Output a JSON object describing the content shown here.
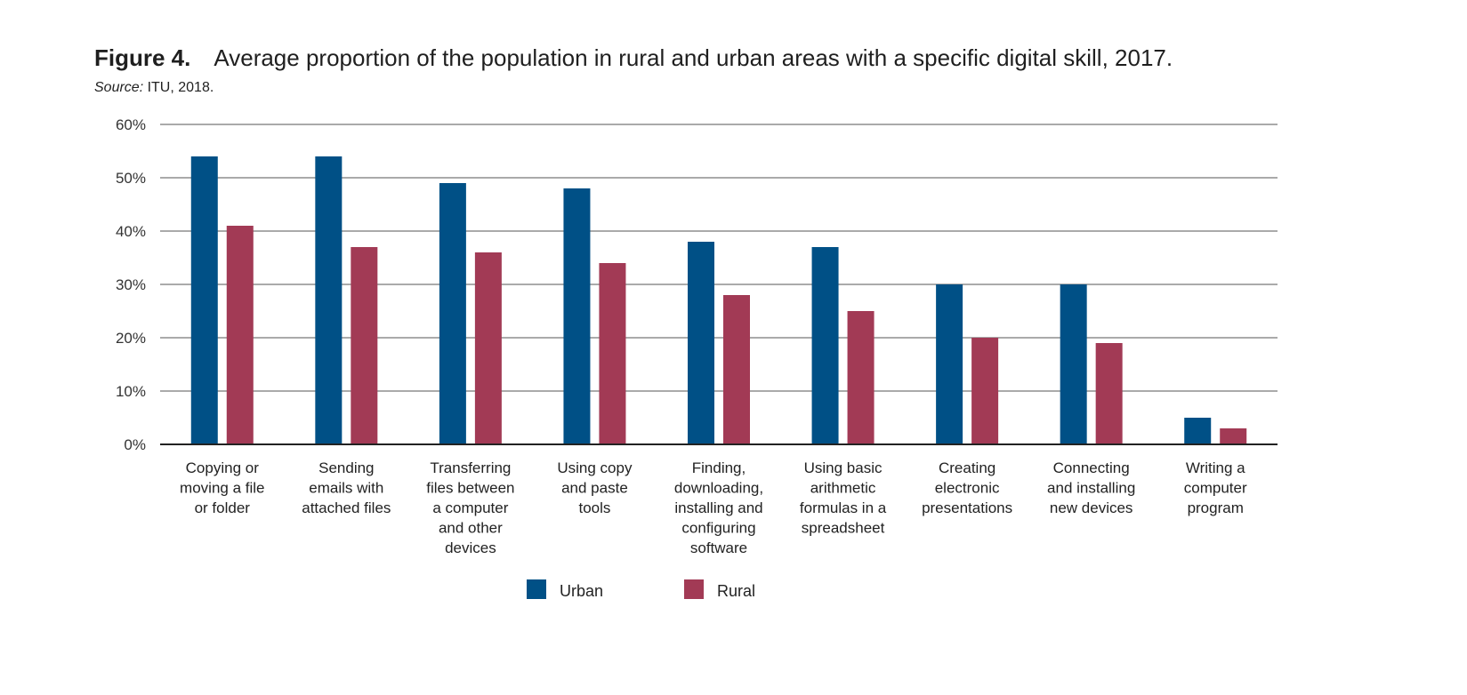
{
  "figure": {
    "number_label": "Figure 4.",
    "title": "Average proportion of the population in rural and urban areas with a specific digital skill, 2017.",
    "source_prefix": "Source:",
    "source_text": " ITU, 2018."
  },
  "colors": {
    "urban": "#005086",
    "rural": "#A23A55",
    "grid": "#555555",
    "axis": "#222222"
  },
  "chart_data": {
    "type": "bar",
    "title": "Average proportion of the population in rural and urban areas with a specific digital skill, 2017.",
    "xlabel": "",
    "ylabel": "",
    "ylim": [
      0,
      60
    ],
    "yticks": [
      0,
      10,
      20,
      30,
      40,
      50,
      60
    ],
    "ytick_labels": [
      "0%",
      "10%",
      "20%",
      "30%",
      "40%",
      "50%",
      "60%"
    ],
    "grid": true,
    "legend_position": "bottom-center",
    "categories": [
      [
        "Copying or",
        "moving a file",
        "or folder"
      ],
      [
        "Sending",
        "emails with",
        "attached files"
      ],
      [
        "Transferring",
        "files between",
        "a computer",
        "and other",
        "devices"
      ],
      [
        "Using copy",
        "and paste",
        "tools"
      ],
      [
        "Finding,",
        "downloading,",
        "installing and",
        "configuring",
        "software"
      ],
      [
        "Using basic",
        "arithmetic",
        "formulas in a",
        "spreadsheet"
      ],
      [
        "Creating",
        "electronic",
        "presentations"
      ],
      [
        "Connecting",
        "and installing",
        "new devices"
      ],
      [
        "Writing a",
        "computer",
        "program"
      ]
    ],
    "series": [
      {
        "name": "Urban",
        "values": [
          54,
          54,
          49,
          48,
          38,
          37,
          30,
          30,
          5
        ]
      },
      {
        "name": "Rural",
        "values": [
          41,
          37,
          36,
          34,
          28,
          25,
          20,
          19,
          3
        ]
      }
    ]
  }
}
